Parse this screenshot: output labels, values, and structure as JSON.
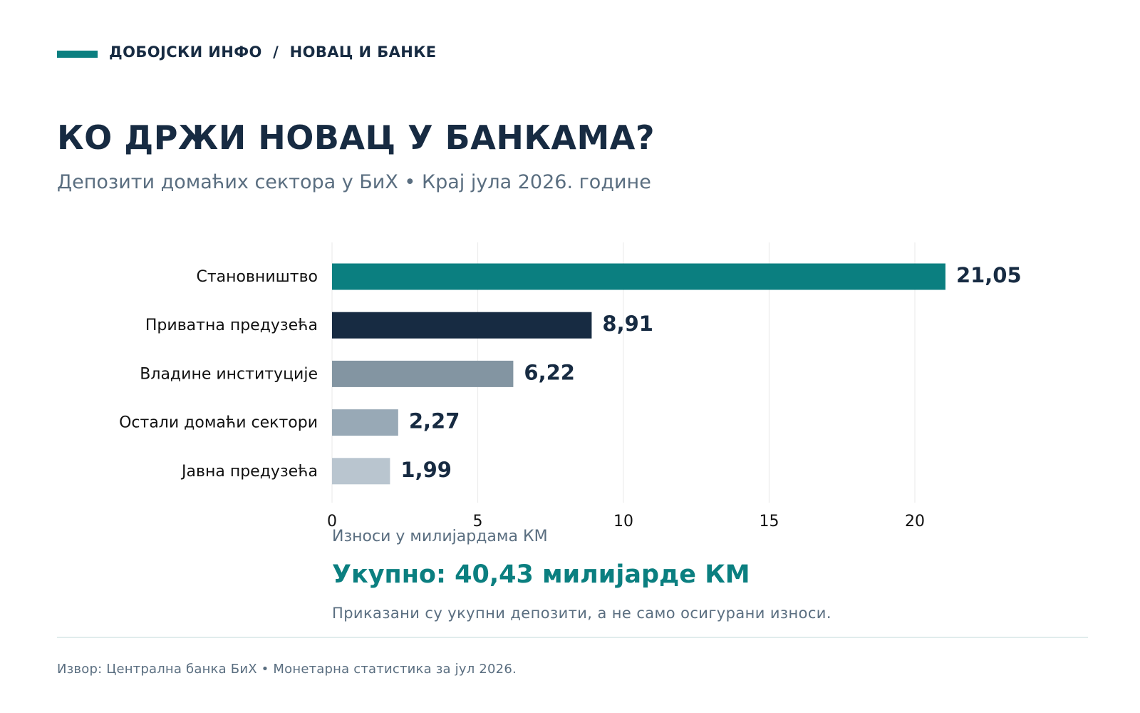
{
  "header": {
    "kicker": "ДОБОЈСКИ ИНФО  /  НОВАЦ И БАНКЕ",
    "title": "КО ДРЖИ НОВАЦ У БАНКАМА?",
    "subtitle": "Депозити домаћих сектора у БиХ • Крај јула 2026. године"
  },
  "colors": {
    "accent": "#0b7f80",
    "dark": "#172b42",
    "muted": "#5a6e80"
  },
  "chart_data": {
    "type": "bar",
    "orientation": "horizontal",
    "categories": [
      "Становништво",
      "Приватна предузећа",
      "Владине институције",
      "Остали домаћи сектори",
      "Јавна предузећа"
    ],
    "values": [
      21.05,
      8.91,
      6.22,
      2.27,
      1.99
    ],
    "value_labels": [
      "21,05",
      "8,91",
      "6,22",
      "2,27",
      "1,99"
    ],
    "bar_colors": [
      "#0b7f80",
      "#172b42",
      "#8395a2",
      "#98a9b6",
      "#b9c5cf"
    ],
    "xlabel": "Износи у милијардама КМ",
    "xlim": [
      0,
      25
    ],
    "xticks": [
      0,
      5,
      10,
      15,
      20
    ],
    "grid": true
  },
  "summary": {
    "total": "Укупно: 40,43 милијарде КМ",
    "note": "Приказани су укупни депозити, а не само осигурани износи."
  },
  "footer": {
    "source": "Извор: Централна банка БиХ • Монетарна статистика за јул 2026."
  }
}
